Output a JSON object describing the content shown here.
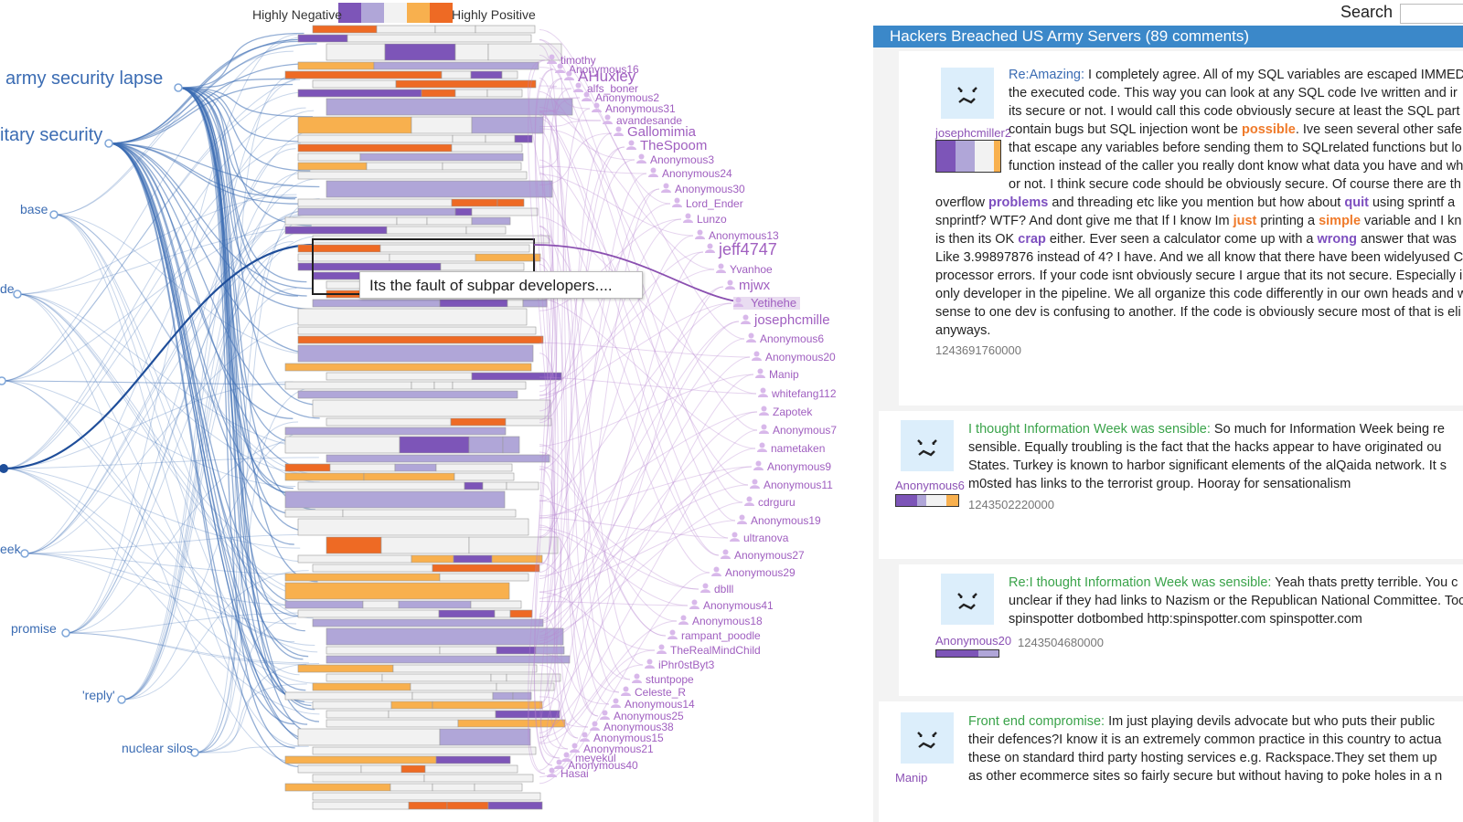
{
  "legend": {
    "negative_label": "Highly Negative",
    "positive_label": "Highly Positive",
    "colors": [
      "#7d55b8",
      "#b0a6d8",
      "#f2f2f2",
      "#f8b04e",
      "#ee6a24"
    ]
  },
  "keywords": [
    {
      "label": "army security lapse"
    },
    {
      "label": "itary security"
    },
    {
      "label": "base"
    },
    {
      "label": "de"
    },
    {
      "label": ""
    },
    {
      "label": ""
    },
    {
      "label": "eek"
    },
    {
      "label": "promise"
    },
    {
      "label": "'reply'"
    },
    {
      "label": "nuclear silos"
    }
  ],
  "users": [
    "timothy",
    "Anonymous16",
    "AHuxley",
    "alfs_boner",
    "Anonymous2",
    "Anonymous31",
    "avandesande",
    "Gallomimia",
    "TheSpoom",
    "Anonymous3",
    "Anonymous24",
    "Anonymous30",
    "Lord_Ender",
    "Lunzo",
    "Anonymous13",
    "jeff4747",
    "Yvanhoe",
    "mjwx",
    "Yetihehe",
    "josephcmille",
    "Anonymous6",
    "Anonymous20",
    "Manip",
    "whitefang112",
    "Zapotek",
    "Anonymous7",
    "nametaken",
    "Anonymous9",
    "Anonymous11",
    "cdrguru",
    "Anonymous19",
    "ultranova",
    "Anonymous27",
    "Anonymous29",
    "dblll",
    "Anonymous41",
    "Anonymous18",
    "rampant_poodle",
    "TheRealMindChild",
    "iPhr0stByt3",
    "stuntpope",
    "Celeste_R",
    "Anonymous14",
    "Anonymous25",
    "Anonymous38",
    "Anonymous15",
    "Anonymous21",
    "meyekul",
    "Anonymous40",
    "Hasai"
  ],
  "tooltip": "Its the fault of subpar developers....",
  "search": {
    "label": "Search",
    "value": ""
  },
  "thread_title": "Hackers Breached US Army Servers (89 comments)",
  "comments": [
    {
      "author": "josephcmiller2",
      "timestamp": "1243691760000",
      "sentiment": [
        12,
        12,
        12,
        4
      ],
      "lines": [
        [
          {
            "t": "Re:Amazing:",
            "c": "reply"
          },
          {
            "t": " I completely agree. All of my SQL variables are escaped IMMED"
          }
        ],
        [
          {
            "t": "the executed code. This way you can look at any SQL code Ive written and ir"
          }
        ],
        [
          {
            "t": "its secure or not. I would call this code obviously secure at least the SQL part"
          }
        ],
        [
          {
            "t": "contain bugs but SQL injection wont be "
          },
          {
            "t": "possible",
            "c": "pos"
          },
          {
            "t": ". Ive seen several other safe"
          }
        ],
        [
          {
            "t": "that escape any variables before sending them to SQLrelated functions but lo"
          }
        ],
        [
          {
            "t": "function instead of the caller you really dont know what data you have and wh"
          }
        ],
        [
          {
            "t": "or not. I think secure code should be obviously secure. Of course there are th"
          }
        ],
        [
          {
            "t": "overflow "
          },
          {
            "t": "problems",
            "c": "neg"
          },
          {
            "t": " and threading etc like you mention but how about "
          },
          {
            "t": "quit",
            "c": "neg"
          },
          {
            "t": " using sprintf a"
          }
        ],
        [
          {
            "t": "snprintf? WTF? And dont give me that If I know Im "
          },
          {
            "t": "just",
            "c": "pos"
          },
          {
            "t": " printing a "
          },
          {
            "t": "simple",
            "c": "pos"
          },
          {
            "t": " variable and I kn"
          }
        ],
        [
          {
            "t": "is then its OK "
          },
          {
            "t": "crap",
            "c": "neg"
          },
          {
            "t": " either. Ever seen a calculator come up with a "
          },
          {
            "t": "wrong",
            "c": "neg"
          },
          {
            "t": " answer that was"
          }
        ],
        [
          {
            "t": "Like 3.99897876 instead of 4? I have. And we all know that there have been widelyused C"
          }
        ],
        [
          {
            "t": "processor errors. If your code isnt obviously secure I argue that its not secure. Especially i"
          }
        ],
        [
          {
            "t": "only developer in the pipeline. We all organize this code differently in our own heads and w"
          }
        ],
        [
          {
            "t": "sense to one dev is confusing to another. If the code is obviously secure most of that is eli"
          }
        ],
        [
          {
            "t": "anyways."
          }
        ]
      ]
    },
    {
      "author": "Anonymous6",
      "timestamp": "1243502220000",
      "sentiment": [
        9,
        4,
        9,
        5
      ],
      "lines": [
        [
          {
            "t": "I thought Information Week was sensible:",
            "c": "subj"
          },
          {
            "t": " So much for Information Week being re"
          }
        ],
        [
          {
            "t": "sensible. Equally troubling is the fact that the hacks appear to have originated ou"
          }
        ],
        [
          {
            "t": "States. Turkey is known to harbor significant elements of the alQaida network. It s"
          }
        ],
        [
          {
            "t": "m0sted has links to the terrorist group. Hooray for sensationalism"
          }
        ]
      ]
    },
    {
      "author": "Anonymous20",
      "timestamp": "1243504680000",
      "sentiment": [
        27,
        13
      ],
      "lines": [
        [
          {
            "t": "Re:I thought Information Week was sensible:",
            "c": "subj"
          },
          {
            "t": " Yeah thats pretty terrible. You c"
          }
        ],
        [
          {
            "t": "unclear if they had links to Nazism or the Republican National Committee. Toc"
          }
        ],
        [
          {
            "t": "spinspotter dotbombed http:spinspotter.com spinspotter.com"
          }
        ]
      ]
    },
    {
      "author": "Manip",
      "timestamp": "",
      "sentiment": [],
      "lines": [
        [
          {
            "t": "Front end compromise:",
            "c": "subj"
          },
          {
            "t": " Im just playing devils advocate but who puts their public"
          }
        ],
        [
          {
            "t": "their defences?I know it is an extremely common practice in this country to actua"
          }
        ],
        [
          {
            "t": "these on standard third party hosting services e.g. Rackspace.They set them up"
          }
        ],
        [
          {
            "t": "as other ecommerce sites so fairly secure but without having to poke holes in a n"
          }
        ]
      ]
    }
  ]
}
